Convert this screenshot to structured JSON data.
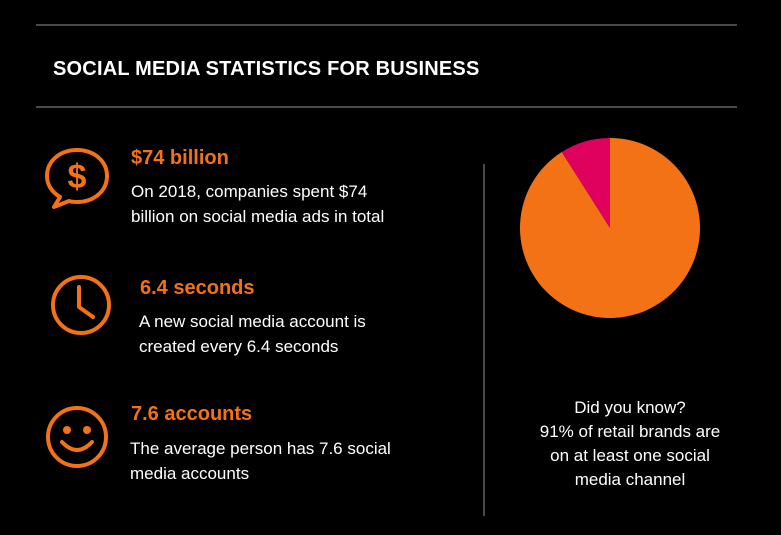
{
  "header": {
    "title": "SOCIAL MEDIA STATISTICS FOR BUSINESS"
  },
  "colors": {
    "accent": "#f47216",
    "pie_minor": "#e0005e",
    "background": "#000000",
    "divider": "#4a4a4a"
  },
  "stats": [
    {
      "icon": "dollar-speech-bubble-icon",
      "heading": "$74 billion",
      "line1": "On 2018, companies spent $74",
      "line2": "billion on social media ads in total"
    },
    {
      "icon": "clock-icon",
      "heading": "6.4 seconds",
      "line1": "A new social media account is",
      "line2": "created every 6.4 seconds"
    },
    {
      "icon": "smiley-face-icon",
      "heading": "7.6 accounts",
      "line1": "The average person has 7.6 social",
      "line2": "media accounts"
    }
  ],
  "fact": {
    "line1": "Did you know?",
    "line2": "91% of retail brands are",
    "line3": "on at least one social",
    "line4": "media channel"
  },
  "chart_data": {
    "type": "pie",
    "title": "",
    "slices": [
      {
        "value": 91,
        "color": "#f47216"
      },
      {
        "value": 9,
        "color": "#e0005e"
      }
    ]
  }
}
